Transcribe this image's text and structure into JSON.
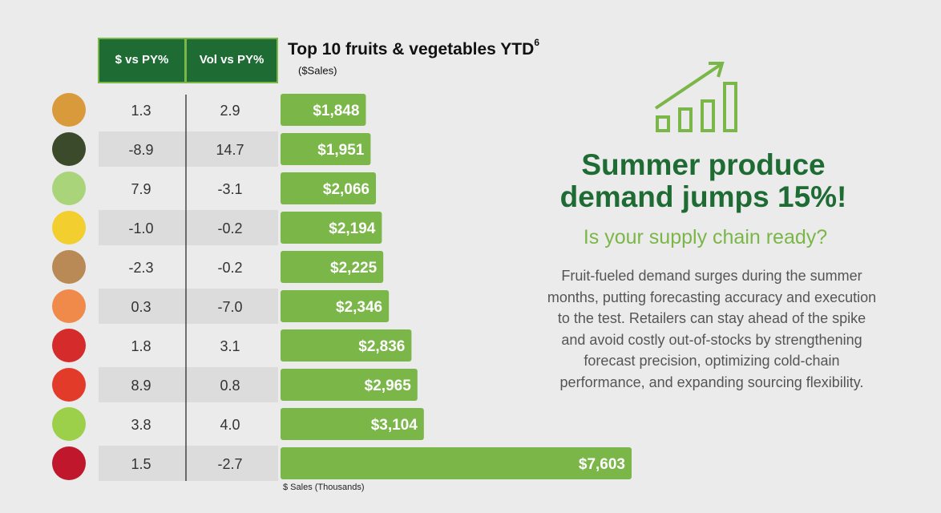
{
  "chart_data": {
    "type": "bar",
    "title": "Top 10 fruits & vegetables YTD",
    "title_superscript": "6",
    "subtitle": "($Sales)",
    "xlabel": "$ Sales (Thousands)",
    "values": [
      1848,
      1951,
      2066,
      2194,
      2225,
      2346,
      2836,
      2965,
      3104,
      7603
    ],
    "value_labels": [
      "$1,848",
      "$1,951",
      "$2,066",
      "$2,194",
      "$2,225",
      "$2,346",
      "$2,836",
      "$2,965",
      "$3,104",
      "$7,603"
    ],
    "color": "#7ab648"
  },
  "table": {
    "headers": [
      "$ vs PY%",
      "Vol vs PY%"
    ],
    "rows": [
      [
        "1.3",
        "2.9"
      ],
      [
        "-8.9",
        "14.7"
      ],
      [
        "7.9",
        "-3.1"
      ],
      [
        "-1.0",
        "-0.2"
      ],
      [
        "-2.3",
        "-0.2"
      ],
      [
        "0.3",
        "-7.0"
      ],
      [
        "1.8",
        "3.1"
      ],
      [
        "8.9",
        "0.8"
      ],
      [
        "3.8",
        "4.0"
      ],
      [
        "1.5",
        "-2.7"
      ]
    ]
  },
  "callout": {
    "title": "Summer produce demand jumps 15%!",
    "subtitle": "Is your supply chain ready?",
    "body": "Fruit-fueled demand surges during the summer months, putting forecasting accuracy and execution to the test. Retailers can stay ahead of the spike and avoid costly out-of-stocks by strengthening forecast precision, optimizing cold-chain performance, and expanding sourcing flexibility."
  }
}
